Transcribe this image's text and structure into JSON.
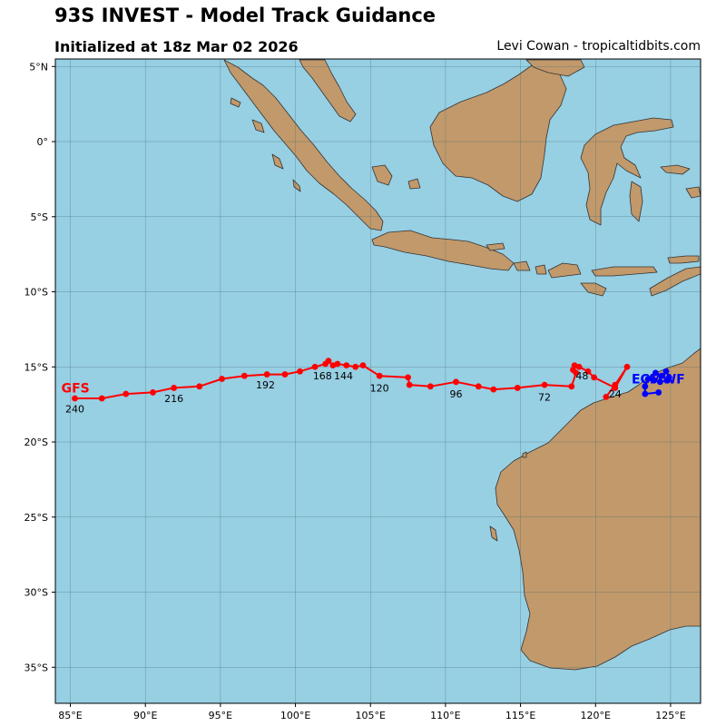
{
  "title": "93S INVEST - Model Track Guidance",
  "subtitle": "Initialized at 18z Mar 02 2026",
  "credit": "Levi Cowan - tropicaltidbits.com",
  "colors": {
    "ocean": "#97cfe3",
    "land": "#c1996b",
    "coast": "#333333",
    "grid": "#4a6a72",
    "gfs": "#ff0000",
    "ecmwf": "#0000ff"
  },
  "chart_data": {
    "type": "scatter",
    "xlim": [
      84.0,
      127.0
    ],
    "ylim": [
      -37.4,
      5.5
    ],
    "xticks": [
      {
        "value": 85,
        "label": "85°E"
      },
      {
        "value": 90,
        "label": "90°E"
      },
      {
        "value": 95,
        "label": "95°E"
      },
      {
        "value": 100,
        "label": "100°E"
      },
      {
        "value": 105,
        "label": "105°E"
      },
      {
        "value": 110,
        "label": "110°E"
      },
      {
        "value": 115,
        "label": "115°E"
      },
      {
        "value": 120,
        "label": "120°E"
      },
      {
        "value": 125,
        "label": "125°E"
      }
    ],
    "yticks": [
      {
        "value": 5,
        "label": "5°N"
      },
      {
        "value": 0,
        "label": "0°"
      },
      {
        "value": -5,
        "label": "5°S"
      },
      {
        "value": -10,
        "label": "10°S"
      },
      {
        "value": -15,
        "label": "15°S"
      },
      {
        "value": -20,
        "label": "20°S"
      },
      {
        "value": -25,
        "label": "25°S"
      },
      {
        "value": -30,
        "label": "30°S"
      },
      {
        "value": -35,
        "label": "35°S"
      }
    ],
    "grid": true,
    "series": [
      {
        "name": "GFS",
        "color": "#ff0000",
        "label_pos": {
          "lon": 84.4,
          "lat": -16.4
        },
        "points": [
          [
            120.7,
            -17.0
          ],
          [
            121.3,
            -16.2
          ],
          [
            122.1,
            -15.0
          ],
          [
            121.3,
            -16.4
          ],
          [
            119.9,
            -15.7
          ],
          [
            119.5,
            -15.3
          ],
          [
            118.9,
            -15.0
          ],
          [
            118.6,
            -14.9
          ],
          [
            118.5,
            -15.2
          ],
          [
            118.7,
            -15.4
          ],
          [
            118.4,
            -16.3
          ],
          [
            116.6,
            -16.2
          ],
          [
            114.8,
            -16.4
          ],
          [
            113.2,
            -16.5
          ],
          [
            112.2,
            -16.3
          ],
          [
            110.7,
            -16.0
          ],
          [
            109.0,
            -16.3
          ],
          [
            107.6,
            -16.2
          ],
          [
            107.5,
            -15.7
          ],
          [
            105.6,
            -15.6
          ],
          [
            104.5,
            -14.9
          ],
          [
            104.0,
            -15.0
          ],
          [
            103.4,
            -14.9
          ],
          [
            102.8,
            -14.8
          ],
          [
            102.5,
            -14.9
          ],
          [
            102.2,
            -14.6
          ],
          [
            102.0,
            -14.8
          ],
          [
            101.3,
            -15.0
          ],
          [
            100.3,
            -15.3
          ],
          [
            99.3,
            -15.5
          ],
          [
            98.1,
            -15.5
          ],
          [
            96.6,
            -15.6
          ],
          [
            95.1,
            -15.8
          ],
          [
            93.6,
            -16.3
          ],
          [
            91.9,
            -16.4
          ],
          [
            90.5,
            -16.7
          ],
          [
            88.7,
            -16.8
          ],
          [
            87.1,
            -17.1
          ],
          [
            85.3,
            -17.1
          ]
        ],
        "labels": [
          {
            "text": "24",
            "lon": 121.3,
            "lat": -16.8
          },
          {
            "text": "48",
            "lon": 119.1,
            "lat": -15.6
          },
          {
            "text": "72",
            "lon": 116.6,
            "lat": -17.0
          },
          {
            "text": "96",
            "lon": 110.7,
            "lat": -16.8
          },
          {
            "text": "120",
            "lon": 105.6,
            "lat": -16.4
          },
          {
            "text": "144",
            "lon": 103.2,
            "lat": -15.6
          },
          {
            "text": "168",
            "lon": 101.8,
            "lat": -15.6
          },
          {
            "text": "192",
            "lon": 98.0,
            "lat": -16.2
          },
          {
            "text": "216",
            "lon": 91.9,
            "lat": -17.1
          },
          {
            "text": "240",
            "lon": 85.3,
            "lat": -17.8
          }
        ]
      },
      {
        "name": "ECMWF",
        "color": "#0000ff",
        "label_pos": {
          "lon": 122.4,
          "lat": -15.8
        },
        "points": [
          [
            124.2,
            -16.7
          ],
          [
            123.3,
            -16.8
          ],
          [
            123.3,
            -16.3
          ],
          [
            123.5,
            -15.8
          ],
          [
            124.0,
            -15.4
          ],
          [
            124.4,
            -15.6
          ],
          [
            124.7,
            -15.3
          ],
          [
            124.9,
            -15.7
          ],
          [
            124.8,
            -15.9
          ],
          [
            124.3,
            -16.0
          ],
          [
            123.9,
            -15.9
          ]
        ],
        "labels": []
      }
    ]
  }
}
